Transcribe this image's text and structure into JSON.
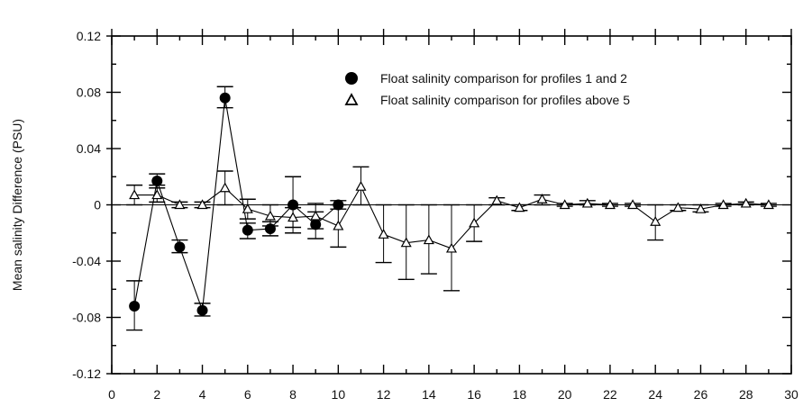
{
  "chart_data": {
    "type": "scatter",
    "title": "",
    "xlabel": "",
    "ylabel": "Mean salinity Difference (PSU)",
    "xlim": [
      0,
      30
    ],
    "ylim": [
      -0.12,
      0.12
    ],
    "xticks": [
      0,
      2,
      4,
      6,
      8,
      10,
      12,
      14,
      16,
      18,
      20,
      22,
      24,
      26,
      28,
      30
    ],
    "yticks": [
      -0.12,
      -0.08,
      -0.04,
      0,
      0.04,
      0.08,
      0.12
    ],
    "ytick_labels": [
      "-0.12",
      "-0.08",
      "-0.04",
      "0",
      "0.04",
      "0.08",
      "0.12"
    ],
    "grid": false,
    "legend_position": "top-right",
    "series": [
      {
        "name": "Float salinity comparison for profiles 1 and 2",
        "marker": "filled-circle",
        "color": "#000000",
        "points": [
          {
            "x": 1,
            "y": -0.072,
            "err_low": -0.089,
            "err_high": -0.054
          },
          {
            "x": 2,
            "y": 0.017,
            "err_low": 0.012,
            "err_high": 0.022
          },
          {
            "x": 3,
            "y": -0.03,
            "err_low": -0.034,
            "err_high": -0.025
          },
          {
            "x": 4,
            "y": -0.075,
            "err_low": -0.079,
            "err_high": -0.07
          },
          {
            "x": 5,
            "y": 0.076,
            "err_low": 0.069,
            "err_high": 0.084
          },
          {
            "x": 6,
            "y": -0.018,
            "err_low": -0.024,
            "err_high": -0.013
          },
          {
            "x": 7,
            "y": -0.017,
            "err_low": -0.022,
            "err_high": -0.012
          },
          {
            "x": 8,
            "y": 0.0,
            "err_low": -0.02,
            "err_high": 0.02
          },
          {
            "x": 9,
            "y": -0.014,
            "err_low": -0.024,
            "err_high": -0.005
          },
          {
            "x": 10,
            "y": 0.0,
            "err_low": -0.003,
            "err_high": 0.003
          }
        ]
      },
      {
        "name": "Float salinity comparison for profiles above 5",
        "marker": "open-triangle",
        "color": "#000000",
        "points": [
          {
            "x": 1,
            "y": 0.007,
            "err_low": 0.0,
            "err_high": 0.014
          },
          {
            "x": 2,
            "y": 0.007,
            "err_low": 0.002,
            "err_high": 0.014
          },
          {
            "x": 3,
            "y": 0.0,
            "err_low": -0.002,
            "err_high": 0.002
          },
          {
            "x": 4,
            "y": 0.0,
            "err_low": -0.002,
            "err_high": 0.002
          },
          {
            "x": 5,
            "y": 0.012,
            "err_low": 0.0,
            "err_high": 0.024
          },
          {
            "x": 6,
            "y": -0.003,
            "err_low": -0.01,
            "err_high": 0.004
          },
          {
            "x": 7,
            "y": -0.008,
            "err_low": -0.015,
            "err_high": 0.0
          },
          {
            "x": 8,
            "y": -0.009,
            "err_low": -0.016,
            "err_high": -0.002
          },
          {
            "x": 9,
            "y": -0.008,
            "err_low": -0.017,
            "err_high": 0.001
          },
          {
            "x": 10,
            "y": -0.015,
            "err_low": -0.03,
            "err_high": 0.0
          },
          {
            "x": 11,
            "y": 0.013,
            "err_low": 0.0,
            "err_high": 0.027
          },
          {
            "x": 12,
            "y": -0.021,
            "err_low": -0.041,
            "err_high": 0.0
          },
          {
            "x": 13,
            "y": -0.027,
            "err_low": -0.053,
            "err_high": 0.0
          },
          {
            "x": 14,
            "y": -0.025,
            "err_low": -0.049,
            "err_high": 0.0
          },
          {
            "x": 15,
            "y": -0.031,
            "err_low": -0.061,
            "err_high": 0.0
          },
          {
            "x": 16,
            "y": -0.013,
            "err_low": -0.026,
            "err_high": 0.0
          },
          {
            "x": 17,
            "y": 0.003,
            "err_low": 0.0,
            "err_high": 0.005
          },
          {
            "x": 18,
            "y": -0.002,
            "err_low": -0.004,
            "err_high": 0.0
          },
          {
            "x": 19,
            "y": 0.004,
            "err_low": 0.0,
            "err_high": 0.007
          },
          {
            "x": 20,
            "y": 0.0,
            "err_low": -0.001,
            "err_high": 0.001
          },
          {
            "x": 21,
            "y": 0.001,
            "err_low": 0.0,
            "err_high": 0.003
          },
          {
            "x": 22,
            "y": 0.0,
            "err_low": -0.001,
            "err_high": 0.001
          },
          {
            "x": 23,
            "y": 0.0,
            "err_low": -0.001,
            "err_high": 0.001
          },
          {
            "x": 24,
            "y": -0.012,
            "err_low": -0.025,
            "err_high": 0.0
          },
          {
            "x": 25,
            "y": -0.002,
            "err_low": -0.004,
            "err_high": 0.0
          },
          {
            "x": 26,
            "y": -0.003,
            "err_low": -0.005,
            "err_high": 0.0
          },
          {
            "x": 27,
            "y": 0.0,
            "err_low": -0.001,
            "err_high": 0.001
          },
          {
            "x": 28,
            "y": 0.001,
            "err_low": 0.0,
            "err_high": 0.002
          },
          {
            "x": 29,
            "y": 0.0,
            "err_low": -0.001,
            "err_high": 0.001
          }
        ]
      }
    ]
  }
}
